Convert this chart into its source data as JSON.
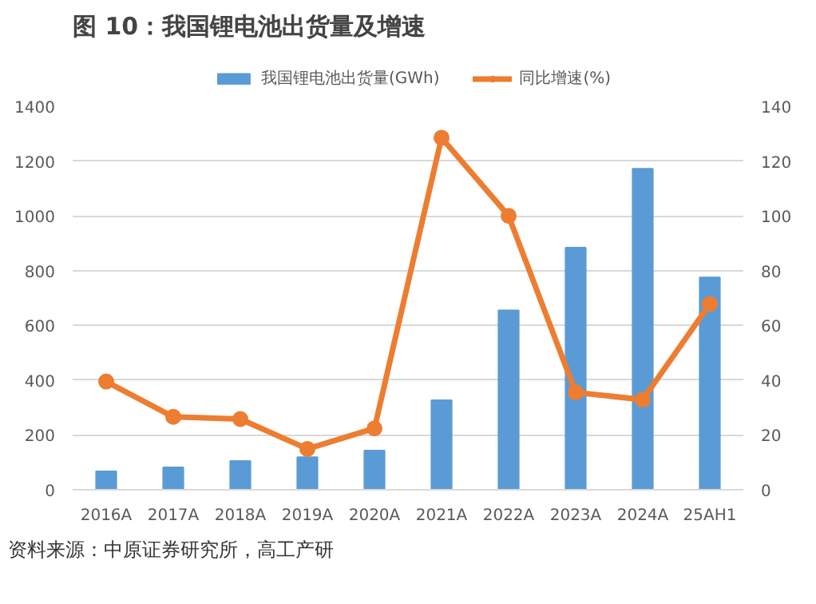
{
  "chart_data": {
    "type": "bar",
    "title": "图 10：我国锂电池出货量及增速",
    "categories": [
      "2016A",
      "2017A",
      "2018A",
      "2019A",
      "2020A",
      "2021A",
      "2022A",
      "2023A",
      "2024A",
      "25AH1"
    ],
    "series": [
      {
        "name": "我国锂电池出货量(GWh)",
        "type": "bar",
        "color": "#5b9bd5",
        "values": [
          67,
          82,
          105,
          119,
          143,
          327,
          655,
          884,
          1172,
          775
        ]
      },
      {
        "name": "同比增速(%)",
        "type": "line",
        "axis": "y2",
        "color": "#ed7d31",
        "marker": "circle",
        "values": [
          39.5,
          26.6,
          25.8,
          14.9,
          22.4,
          128.5,
          100,
          35.5,
          32.9,
          67.8
        ]
      }
    ],
    "ylim": [
      0,
      1400
    ],
    "yticks": [
      0,
      200,
      400,
      600,
      800,
      1000,
      1200,
      1400
    ],
    "y2lim": [
      0,
      140
    ],
    "y2ticks": [
      0,
      20,
      40,
      60,
      80,
      100,
      120,
      140
    ],
    "grid": "y",
    "legend": "top",
    "annotations": [
      "资料来源：中原证券研究所，高工产研"
    ]
  }
}
